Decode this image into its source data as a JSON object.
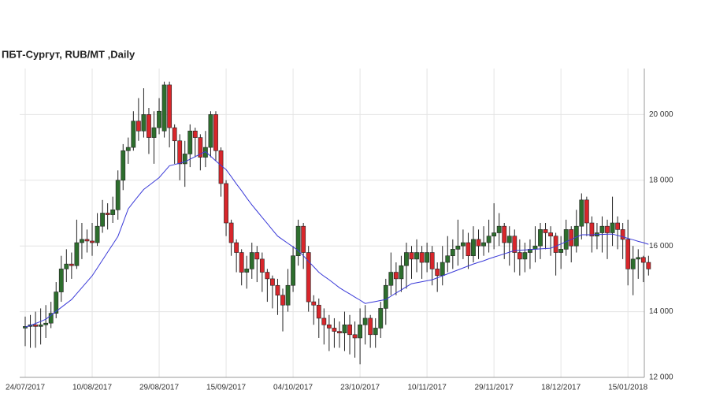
{
  "chart_data": {
    "type": "candlestick",
    "title": "ПБТ-Сургут,  RUB/MT ,Daily",
    "up_color": "#2d6e2d",
    "down_color": "#d8262b",
    "ma_color": "#3a3ad8",
    "grid": true,
    "ylim": [
      12000,
      21400
    ],
    "yticks": [
      {
        "value": 12000,
        "label": "12 000"
      },
      {
        "value": 14000,
        "label": "14 000"
      },
      {
        "value": 16000,
        "label": "16 000"
      },
      {
        "value": 18000,
        "label": "18 000"
      },
      {
        "value": 20000,
        "label": "20 000"
      }
    ],
    "categories": [
      "24/07/2017",
      null,
      null,
      null,
      null,
      null,
      null,
      null,
      null,
      null,
      null,
      null,
      null,
      "10/08/2017",
      null,
      null,
      null,
      null,
      null,
      null,
      null,
      null,
      null,
      null,
      null,
      null,
      "29/08/2017",
      null,
      null,
      null,
      null,
      null,
      null,
      null,
      null,
      null,
      null,
      null,
      null,
      "15/09/2017",
      null,
      null,
      null,
      null,
      null,
      null,
      null,
      null,
      null,
      null,
      null,
      null,
      "04/10/2017",
      null,
      null,
      null,
      null,
      null,
      null,
      null,
      null,
      null,
      null,
      null,
      null,
      "23/10/2017",
      null,
      null,
      null,
      null,
      null,
      null,
      null,
      null,
      null,
      null,
      null,
      null,
      "10/11/2017",
      null,
      null,
      null,
      null,
      null,
      null,
      null,
      null,
      null,
      null,
      null,
      null,
      "29/11/2017",
      null,
      null,
      null,
      null,
      null,
      null,
      null,
      null,
      null,
      null,
      null,
      null,
      "18/12/2017",
      null,
      null,
      null,
      null,
      null,
      null,
      null,
      null,
      null,
      null,
      null,
      null,
      "15/01/2018",
      null,
      null,
      null,
      null
    ],
    "open": [
      13500,
      13550,
      13600,
      13550,
      13600,
      13650,
      13950,
      14600,
      15300,
      15450,
      15400,
      16100,
      16200,
      16150,
      16100,
      16600,
      17000,
      16950,
      17100,
      18000,
      18900,
      19000,
      19800,
      19500,
      20000,
      19300,
      19600,
      19500,
      20900,
      19600,
      19200,
      18500,
      18800,
      19500,
      19300,
      18700,
      19000,
      20000,
      18900,
      17900,
      16700,
      16100,
      15800,
      15200,
      15300,
      15800,
      15600,
      15200,
      15000,
      14800,
      14500,
      14200,
      14800,
      15700,
      16600,
      15800,
      14300,
      14200,
      13800,
      13600,
      13500,
      13400,
      13350,
      13600,
      13300,
      13200,
      13600,
      13800,
      13300,
      13500,
      14100,
      14800,
      15200,
      15000,
      15400,
      15800,
      15600,
      15800,
      15500,
      15800,
      15300,
      15100,
      15500,
      15700,
      15900,
      16000,
      16100,
      15700,
      16200,
      16000,
      16100,
      16300,
      16400,
      16600,
      16100,
      16300,
      15800,
      15600,
      15800,
      15900,
      16000,
      16500,
      16400,
      16300,
      15800,
      15900,
      16500,
      16000,
      16600,
      17400,
      16700,
      16300,
      16400,
      16600,
      16400,
      16700,
      16500,
      16200,
      15300,
      15600,
      15650,
      15500
    ],
    "high": [
      13850,
      13900,
      14000,
      14100,
      14200,
      14300,
      14900,
      15700,
      15900,
      15800,
      16800,
      16700,
      16500,
      16700,
      17000,
      17400,
      17300,
      17500,
      18300,
      19100,
      19300,
      20100,
      20500,
      20800,
      20200,
      20100,
      20500,
      21000,
      21000,
      19700,
      19400,
      19200,
      19700,
      19600,
      19400,
      19500,
      20100,
      20100,
      19000,
      18000,
      16800,
      16200,
      15900,
      15700,
      16100,
      16000,
      15800,
      15300,
      15100,
      15000,
      14700,
      15300,
      16000,
      16800,
      16700,
      16000,
      14500,
      14400,
      14100,
      13900,
      13800,
      13700,
      14000,
      13900,
      13700,
      14100,
      14200,
      13900,
      13800,
      14300,
      15000,
      15800,
      15500,
      15700,
      16100,
      16000,
      16200,
      16000,
      16100,
      16000,
      15500,
      16000,
      16300,
      16200,
      16800,
      16500,
      16400,
      16600,
      16500,
      16600,
      16800,
      17300,
      17000,
      16700,
      16600,
      16500,
      16200,
      16100,
      16200,
      16600,
      16700,
      16700,
      16600,
      16400,
      16300,
      16800,
      16600,
      17100,
      17600,
      17500,
      16900,
      16700,
      16900,
      16800,
      17500,
      16900,
      16700,
      16800,
      16000,
      15900,
      15700,
      15700
    ],
    "low": [
      12950,
      12900,
      12900,
      13000,
      13200,
      13500,
      13800,
      14300,
      14900,
      15000,
      15300,
      15600,
      15800,
      15700,
      16000,
      16400,
      16500,
      16700,
      16800,
      17700,
      18500,
      18900,
      19200,
      19300,
      18800,
      18500,
      19400,
      19300,
      19000,
      18500,
      18000,
      17800,
      18400,
      18700,
      18300,
      18400,
      18700,
      18600,
      17500,
      16300,
      15700,
      15200,
      14800,
      14700,
      15000,
      14900,
      14600,
      14300,
      14100,
      13900,
      13400,
      14000,
      14600,
      15400,
      15300,
      14000,
      13600,
      13200,
      13000,
      12800,
      12900,
      12900,
      12800,
      12700,
      12600,
      12400,
      13000,
      12900,
      12900,
      13200,
      13600,
      14500,
      14500,
      14600,
      14700,
      15000,
      15200,
      15000,
      15200,
      14800,
      14600,
      14800,
      15200,
      15300,
      15400,
      15600,
      15300,
      15500,
      15600,
      15700,
      15800,
      15900,
      16000,
      15600,
      15400,
      15200,
      15100,
      15200,
      15300,
      15500,
      15600,
      15900,
      15700,
      15100,
      15300,
      15700,
      15500,
      15800,
      16200,
      16300,
      15800,
      15900,
      15800,
      15600,
      16000,
      15900,
      15600,
      14800,
      14500,
      15000,
      14900,
      15100
    ],
    "close": [
      13550,
      13600,
      13550,
      13600,
      13650,
      13950,
      14600,
      15300,
      15450,
      15400,
      16100,
      16200,
      16150,
      16100,
      16600,
      17000,
      16950,
      17100,
      18000,
      18900,
      19000,
      19800,
      19500,
      20000,
      19300,
      19600,
      20100,
      20900,
      19600,
      19200,
      18500,
      18800,
      19500,
      19300,
      18700,
      19000,
      20000,
      18900,
      17900,
      16700,
      16100,
      15800,
      15200,
      15300,
      15800,
      15600,
      15200,
      15000,
      14800,
      14500,
      14200,
      14800,
      15700,
      16600,
      15800,
      14300,
      14200,
      13800,
      13600,
      13500,
      13400,
      13350,
      13600,
      13300,
      13200,
      13600,
      13800,
      13300,
      13500,
      14100,
      14800,
      15200,
      15000,
      15400,
      15800,
      15600,
      15800,
      15500,
      15800,
      15300,
      15100,
      15500,
      15700,
      15900,
      16000,
      16100,
      15700,
      16200,
      16000,
      16100,
      16300,
      16400,
      16600,
      16100,
      16300,
      15800,
      15600,
      15800,
      15900,
      16000,
      16500,
      16400,
      16300,
      15800,
      15900,
      16500,
      16000,
      16600,
      17400,
      16700,
      16300,
      16400,
      16600,
      16400,
      16700,
      16500,
      16200,
      15300,
      15600,
      15650,
      15500,
      15300
    ],
    "ma": [
      13530,
      13580,
      13640,
      13700,
      13770,
      13890,
      14010,
      14130,
      14250,
      14370,
      14550,
      14730,
      14910,
      15090,
      15330,
      15570,
      15810,
      16050,
      16290,
      16710,
      17130,
      17330,
      17530,
      17720,
      17840,
      17960,
      18080,
      18260,
      18440,
      18480,
      18520,
      18560,
      18640,
      18720,
      18800,
      18870,
      18730,
      18590,
      18450,
      18320,
      18110,
      17890,
      17680,
      17460,
      17250,
      17060,
      16870,
      16680,
      16490,
      16300,
      16190,
      16080,
      15970,
      15860,
      15700,
      15530,
      15370,
      15200,
      15080,
      14970,
      14850,
      14730,
      14630,
      14540,
      14440,
      14350,
      14250,
      14280,
      14310,
      14340,
      14370,
      14470,
      14570,
      14660,
      14760,
      14850,
      14880,
      14910,
      14940,
      14970,
      15030,
      15090,
      15150,
      15210,
      15270,
      15330,
      15390,
      15450,
      15500,
      15550,
      15610,
      15660,
      15710,
      15760,
      15810,
      15860,
      15870,
      15880,
      15890,
      15900,
      15910,
      15920,
      15930,
      15990,
      16060,
      16130,
      16200,
      16270,
      16340,
      16340,
      16340,
      16350,
      16350,
      16360,
      16360,
      16320,
      16280,
      16230,
      16190,
      16140,
      16100,
      16050
    ]
  }
}
